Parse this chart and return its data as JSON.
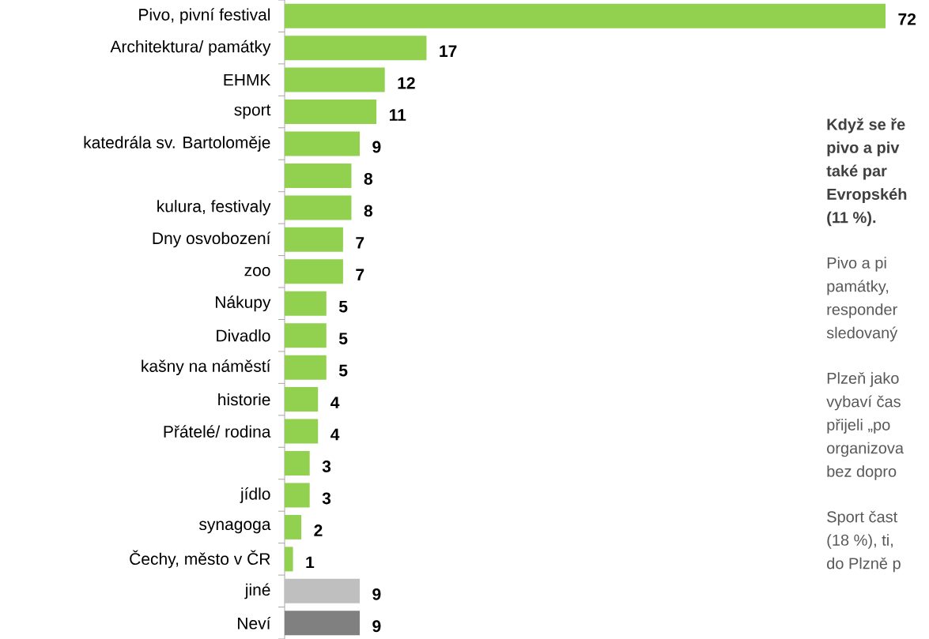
{
  "chart_data": {
    "type": "bar",
    "orientation": "horizontal",
    "data_labels": true,
    "categories": [
      "Pivo, pivní festival",
      "Architektura/ památky",
      "EHMK",
      "sport",
      "katedrála sv. Bartoloměje",
      null,
      "kulura, festivaly",
      "Dny osvobození",
      "zoo",
      "Nákupy",
      "Divadlo",
      "kašny na náměstí",
      "historie",
      "Přátelé/ rodina",
      null,
      "jídlo",
      "synagoga",
      "Čechy, město v ČR",
      "jiné",
      "Neví"
    ],
    "values": [
      72,
      17,
      12,
      11,
      9,
      8,
      8,
      7,
      7,
      5,
      5,
      5,
      4,
      4,
      3,
      3,
      2,
      1,
      9,
      9
    ],
    "colors": [
      "#92d050",
      "#92d050",
      "#92d050",
      "#92d050",
      "#92d050",
      "#92d050",
      "#92d050",
      "#92d050",
      "#92d050",
      "#92d050",
      "#92d050",
      "#92d050",
      "#92d050",
      "#92d050",
      "#92d050",
      "#92d050",
      "#92d050",
      "#92d050",
      "#bfbfbf",
      "#808080"
    ],
    "annotations": [
      "**Když se ře**",
      "**pivo a piv**",
      "**také par**",
      "**Evropskéh**",
      "**(11 %).**",
      "Pivo a pi",
      "památky,",
      "responder",
      "sledovaný",
      "Plzeň jako",
      "vybaví čas",
      "přijeli „po",
      "organizova",
      "bez dopro",
      "Sport čast",
      "(18 %), ti,",
      "do Plzně p"
    ]
  }
}
